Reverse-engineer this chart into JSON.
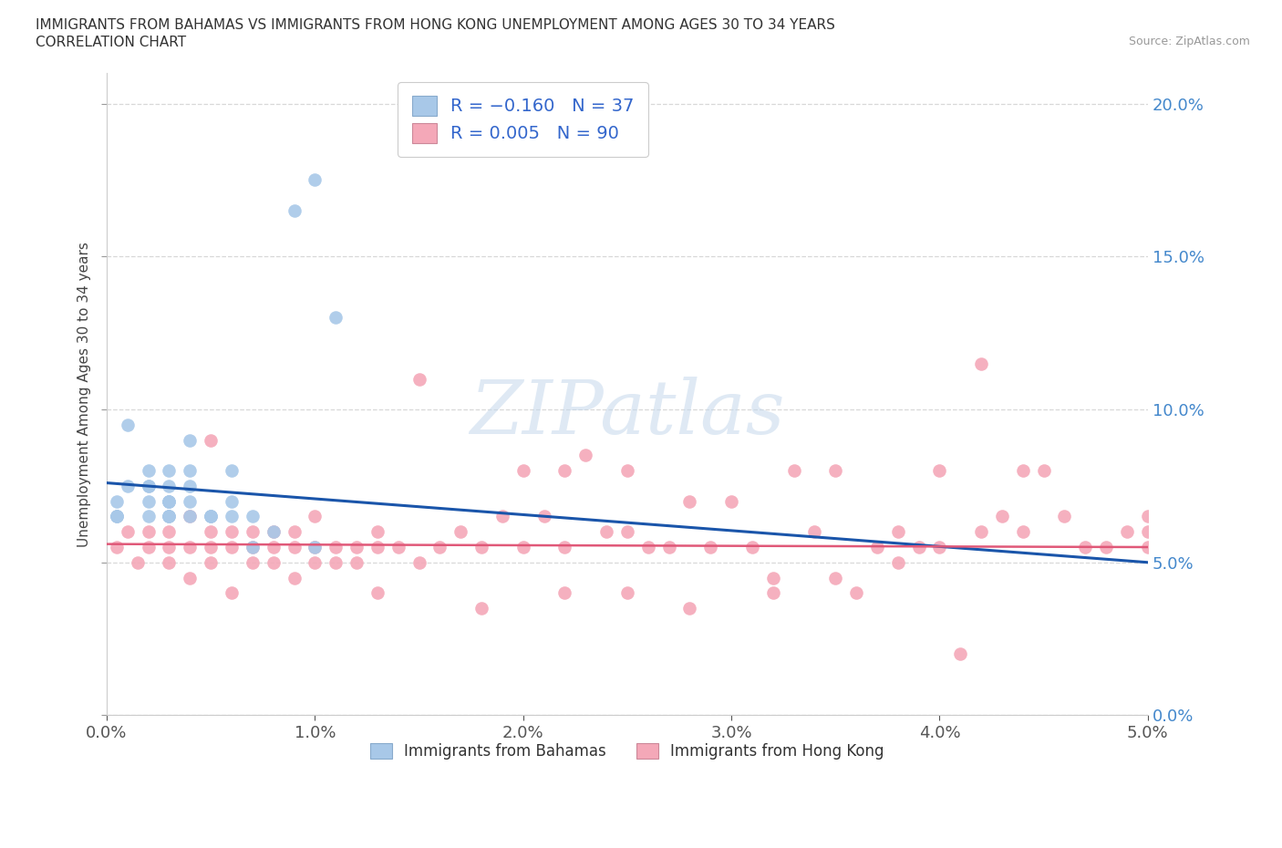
{
  "title_line1": "IMMIGRANTS FROM BAHAMAS VS IMMIGRANTS FROM HONG KONG UNEMPLOYMENT AMONG AGES 30 TO 34 YEARS",
  "title_line2": "CORRELATION CHART",
  "source_text": "Source: ZipAtlas.com",
  "ylabel": "Unemployment Among Ages 30 to 34 years",
  "xlim": [
    0.0,
    0.05
  ],
  "ylim": [
    0.0,
    0.21
  ],
  "yticks": [
    0.0,
    0.05,
    0.1,
    0.15,
    0.2
  ],
  "xticks": [
    0.0,
    0.01,
    0.02,
    0.03,
    0.04,
    0.05
  ],
  "bahamas_color": "#a8c8e8",
  "hk_color": "#f4a8b8",
  "bahamas_line_color": "#1a55aa",
  "hk_line_color": "#e05878",
  "watermark_text": "ZIPatlas",
  "background_color": "#ffffff",
  "grid_color": "#d8d8d8",
  "right_tick_color": "#4488cc",
  "bahamas_x": [
    0.001,
    0.001,
    0.002,
    0.002,
    0.002,
    0.002,
    0.002,
    0.003,
    0.003,
    0.003,
    0.003,
    0.003,
    0.003,
    0.003,
    0.003,
    0.004,
    0.004,
    0.004,
    0.004,
    0.004,
    0.005,
    0.005,
    0.005,
    0.006,
    0.006,
    0.006,
    0.007,
    0.007,
    0.008,
    0.009,
    0.01,
    0.01,
    0.011,
    0.0005,
    0.0005,
    0.0005,
    0.0005
  ],
  "bahamas_y": [
    0.095,
    0.075,
    0.07,
    0.075,
    0.08,
    0.075,
    0.065,
    0.065,
    0.07,
    0.07,
    0.075,
    0.08,
    0.065,
    0.07,
    0.065,
    0.07,
    0.075,
    0.08,
    0.065,
    0.09,
    0.065,
    0.065,
    0.065,
    0.07,
    0.08,
    0.065,
    0.065,
    0.055,
    0.06,
    0.165,
    0.175,
    0.055,
    0.13,
    0.065,
    0.065,
    0.065,
    0.07
  ],
  "hk_x": [
    0.0005,
    0.001,
    0.0015,
    0.002,
    0.002,
    0.003,
    0.003,
    0.003,
    0.004,
    0.004,
    0.004,
    0.005,
    0.005,
    0.005,
    0.005,
    0.006,
    0.006,
    0.006,
    0.007,
    0.007,
    0.007,
    0.008,
    0.008,
    0.008,
    0.009,
    0.009,
    0.009,
    0.01,
    0.01,
    0.01,
    0.011,
    0.011,
    0.012,
    0.012,
    0.013,
    0.013,
    0.014,
    0.015,
    0.015,
    0.016,
    0.017,
    0.018,
    0.019,
    0.02,
    0.02,
    0.021,
    0.022,
    0.022,
    0.023,
    0.024,
    0.025,
    0.025,
    0.026,
    0.027,
    0.028,
    0.029,
    0.03,
    0.031,
    0.032,
    0.033,
    0.034,
    0.035,
    0.036,
    0.037,
    0.038,
    0.039,
    0.04,
    0.041,
    0.042,
    0.043,
    0.044,
    0.045,
    0.046,
    0.047,
    0.048,
    0.049,
    0.05,
    0.05,
    0.05,
    0.035,
    0.04,
    0.042,
    0.044,
    0.013,
    0.018,
    0.022,
    0.025,
    0.028,
    0.032,
    0.038
  ],
  "hk_y": [
    0.055,
    0.06,
    0.05,
    0.055,
    0.06,
    0.05,
    0.055,
    0.06,
    0.045,
    0.055,
    0.065,
    0.055,
    0.06,
    0.09,
    0.05,
    0.055,
    0.06,
    0.04,
    0.05,
    0.055,
    0.06,
    0.05,
    0.055,
    0.06,
    0.045,
    0.055,
    0.06,
    0.05,
    0.055,
    0.065,
    0.05,
    0.055,
    0.05,
    0.055,
    0.055,
    0.06,
    0.055,
    0.05,
    0.11,
    0.055,
    0.06,
    0.055,
    0.065,
    0.055,
    0.08,
    0.065,
    0.08,
    0.055,
    0.085,
    0.06,
    0.08,
    0.06,
    0.055,
    0.055,
    0.07,
    0.055,
    0.07,
    0.055,
    0.045,
    0.08,
    0.06,
    0.045,
    0.04,
    0.055,
    0.06,
    0.055,
    0.055,
    0.02,
    0.06,
    0.065,
    0.06,
    0.08,
    0.065,
    0.055,
    0.055,
    0.06,
    0.055,
    0.065,
    0.06,
    0.08,
    0.08,
    0.115,
    0.08,
    0.04,
    0.035,
    0.04,
    0.04,
    0.035,
    0.04,
    0.05
  ]
}
